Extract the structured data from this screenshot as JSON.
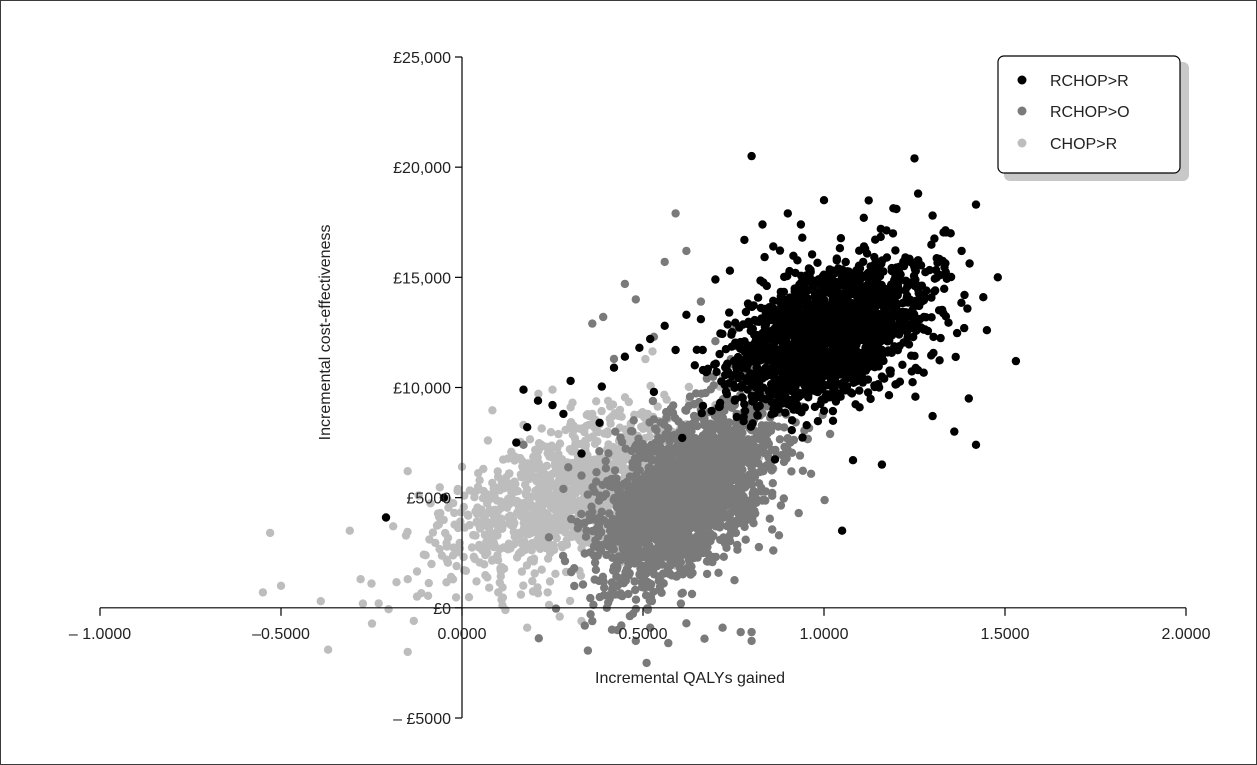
{
  "chart_data": {
    "type": "scatter",
    "title": "",
    "xlabel": "Incremental QALYs gained",
    "ylabel": "Incremental cost-effectiveness",
    "xlim": [
      -1.0,
      2.0
    ],
    "ylim": [
      -5000,
      25000
    ],
    "x_tick_values": [
      -1.0,
      -0.5,
      0.0,
      0.5,
      1.0,
      1.5,
      2.0
    ],
    "x_tick_labels": [
      "– 1.0000",
      "–0.5000",
      "0.0000",
      "0.5000",
      "1.0000",
      "1.5000",
      "2.0000"
    ],
    "y_tick_values": [
      25000,
      20000,
      15000,
      10000,
      5000,
      0,
      -5000
    ],
    "y_tick_labels": [
      "£25,000",
      "£20,000",
      "£15,000",
      "£10,000",
      "£5000",
      "£0",
      "– £5000"
    ],
    "grid": false,
    "legend_position": "top-right",
    "series": [
      {
        "name": "CHOP>R",
        "color": "#bdbdbd",
        "cluster": {
          "mean_x": 0.3,
          "mean_y": 5200,
          "sd_x": 0.17,
          "sd_y": 1800,
          "corr": 0.55,
          "n": 1200
        },
        "values": [
          [
            -0.53,
            3400
          ],
          [
            -0.55,
            700
          ],
          [
            -0.5,
            1000
          ],
          [
            -0.39,
            300
          ],
          [
            -0.37,
            -1900
          ],
          [
            -0.31,
            3500
          ],
          [
            -0.28,
            1300
          ],
          [
            -0.25,
            1100
          ],
          [
            -0.23,
            200
          ],
          [
            -0.19,
            3700
          ],
          [
            -0.15,
            6200
          ],
          [
            -0.15,
            1300
          ],
          [
            -0.15,
            -2000
          ],
          [
            -0.12,
            5100
          ],
          [
            -0.09,
            3100
          ],
          [
            -0.06,
            4300
          ],
          [
            -0.03,
            1400
          ],
          [
            0.0,
            6400
          ],
          [
            0.04,
            1200
          ],
          [
            0.07,
            2500
          ],
          [
            0.1,
            700
          ],
          [
            0.13,
            6100
          ],
          [
            0.17,
            8300
          ],
          [
            0.2,
            4200
          ],
          [
            0.22,
            7400
          ],
          [
            0.25,
            9900
          ],
          [
            0.28,
            5800
          ],
          [
            0.3,
            9100
          ],
          [
            0.33,
            2700
          ],
          [
            0.36,
            8800
          ],
          [
            0.4,
            3800
          ],
          [
            0.44,
            7300
          ],
          [
            0.48,
            6600
          ],
          [
            0.52,
            2600
          ],
          [
            0.56,
            5400
          ],
          [
            0.6,
            7100
          ],
          [
            0.64,
            4900
          ],
          [
            0.7,
            6900
          ],
          [
            0.76,
            7600
          ],
          [
            0.82,
            6800
          ],
          [
            0.86,
            6300
          ],
          [
            0.12,
            -100
          ],
          [
            0.18,
            -900
          ],
          [
            0.27,
            -400
          ],
          [
            0.33,
            -600
          ]
        ]
      },
      {
        "name": "RCHOP>O",
        "color": "#7a7a7a",
        "cluster": {
          "mean_x": 0.62,
          "mean_y": 5200,
          "sd_x": 0.12,
          "sd_y": 2000,
          "corr": 0.55,
          "n": 2200
        },
        "values": [
          [
            0.17,
            7400
          ],
          [
            0.24,
            3200
          ],
          [
            0.31,
            1800
          ],
          [
            0.36,
            12900
          ],
          [
            0.39,
            13200
          ],
          [
            0.42,
            11300
          ],
          [
            0.45,
            14700
          ],
          [
            0.48,
            14000
          ],
          [
            0.51,
            -2500
          ],
          [
            0.53,
            12300
          ],
          [
            0.56,
            15700
          ],
          [
            0.59,
            17900
          ],
          [
            0.62,
            16200
          ],
          [
            0.66,
            13900
          ],
          [
            0.7,
            12100
          ],
          [
            0.75,
            12600
          ],
          [
            0.8,
            -1100
          ],
          [
            0.8,
            12800
          ],
          [
            0.83,
            13000
          ],
          [
            0.86,
            2600
          ],
          [
            0.89,
            10400
          ],
          [
            0.93,
            4300
          ],
          [
            0.36,
            -600
          ],
          [
            0.4,
            0
          ],
          [
            0.44,
            -800
          ],
          [
            0.48,
            -1500
          ],
          [
            0.52,
            -900
          ],
          [
            0.57,
            -1600
          ],
          [
            0.62,
            -700
          ],
          [
            0.67,
            -1400
          ],
          [
            0.72,
            -900
          ],
          [
            0.77,
            -1100
          ],
          [
            0.8,
            -1500
          ],
          [
            0.28,
            5400
          ],
          [
            0.33,
            6000
          ]
        ]
      },
      {
        "name": "RCHOP>R",
        "color": "#000000",
        "cluster": {
          "mean_x": 1.01,
          "mean_y": 12400,
          "sd_x": 0.13,
          "sd_y": 1600,
          "corr": 0.45,
          "n": 2000
        },
        "values": [
          [
            -0.21,
            4100
          ],
          [
            -0.05,
            5000
          ],
          [
            0.15,
            7500
          ],
          [
            0.17,
            9900
          ],
          [
            0.18,
            8200
          ],
          [
            0.21,
            9400
          ],
          [
            0.25,
            9200
          ],
          [
            0.28,
            8800
          ],
          [
            0.3,
            10300
          ],
          [
            0.33,
            7000
          ],
          [
            0.38,
            8400
          ],
          [
            0.42,
            10900
          ],
          [
            0.45,
            11400
          ],
          [
            0.49,
            11800
          ],
          [
            0.52,
            12200
          ],
          [
            0.53,
            9800
          ],
          [
            0.56,
            12800
          ],
          [
            0.59,
            11700
          ],
          [
            0.62,
            13300
          ],
          [
            0.66,
            13100
          ],
          [
            0.7,
            14900
          ],
          [
            0.74,
            15300
          ],
          [
            0.78,
            16700
          ],
          [
            0.8,
            20500
          ],
          [
            0.83,
            17400
          ],
          [
            0.86,
            16400
          ],
          [
            0.9,
            17900
          ],
          [
            0.94,
            16800
          ],
          [
            1.0,
            18500
          ],
          [
            1.05,
            3500
          ],
          [
            1.08,
            6700
          ],
          [
            1.11,
            17700
          ],
          [
            1.16,
            6500
          ],
          [
            1.2,
            18100
          ],
          [
            1.25,
            20400
          ],
          [
            1.26,
            18800
          ],
          [
            1.3,
            17800
          ],
          [
            1.35,
            17000
          ],
          [
            1.38,
            16200
          ],
          [
            1.42,
            18300
          ],
          [
            1.42,
            7400
          ],
          [
            1.44,
            14100
          ],
          [
            1.48,
            15000
          ],
          [
            1.53,
            11200
          ],
          [
            1.45,
            12600
          ],
          [
            1.4,
            9500
          ],
          [
            1.36,
            8000
          ],
          [
            1.3,
            8700
          ]
        ]
      }
    ]
  },
  "legend": {
    "entries": [
      {
        "label": "RCHOP>R",
        "color": "#000000"
      },
      {
        "label": "RCHOP>O",
        "color": "#7a7a7a"
      },
      {
        "label": "CHOP>R",
        "color": "#bdbdbd"
      }
    ]
  }
}
